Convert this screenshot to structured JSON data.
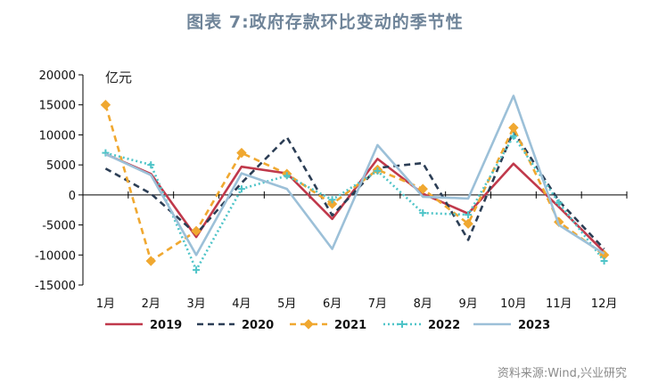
{
  "title": "图表 7:政府存款环比变动的季节性",
  "source": "资料来源:Wind,兴业研究",
  "chart_data": {
    "type": "line",
    "unit_label": "亿元",
    "categories": [
      "1月",
      "2月",
      "3月",
      "4月",
      "5月",
      "6月",
      "7月",
      "8月",
      "9月",
      "10月",
      "11月",
      "12月"
    ],
    "ylim": [
      -15000,
      20000
    ],
    "yticks": [
      20000,
      15000,
      10000,
      5000,
      0,
      -5000,
      -10000,
      -15000
    ],
    "legend_position": "bottom",
    "series": [
      {
        "name": "2019",
        "color": "#c0394b",
        "dash": "solid",
        "marker": "none",
        "values": [
          6800,
          3500,
          -7000,
          4700,
          3600,
          -4000,
          6000,
          200,
          -3100,
          5200,
          -2000,
          -9500
        ]
      },
      {
        "name": "2020",
        "color": "#2c3e55",
        "dash": "dashed",
        "marker": "none",
        "values": [
          4400,
          200,
          -6500,
          2000,
          9600,
          -3400,
          4500,
          5300,
          -7500,
          10600,
          -1000,
          -9000
        ]
      },
      {
        "name": "2021",
        "color": "#f0a830",
        "dash": "dashed",
        "marker": "diamond",
        "values": [
          15000,
          -11000,
          -6000,
          7000,
          3500,
          -1500,
          4200,
          1000,
          -4800,
          11200,
          -4500,
          -10000
        ]
      },
      {
        "name": "2022",
        "color": "#4fc4c8",
        "dash": "dotted",
        "marker": "cross",
        "values": [
          7000,
          5000,
          -12500,
          1000,
          3200,
          -800,
          4000,
          -3000,
          -3300,
          9800,
          -1300,
          -11000
        ]
      },
      {
        "name": "2023",
        "color": "#9cc0d8",
        "dash": "solid",
        "marker": "none",
        "values": [
          6800,
          3300,
          -10000,
          3600,
          1000,
          -9000,
          8300,
          -300,
          -600,
          16500,
          -5000,
          -9800
        ]
      }
    ]
  }
}
